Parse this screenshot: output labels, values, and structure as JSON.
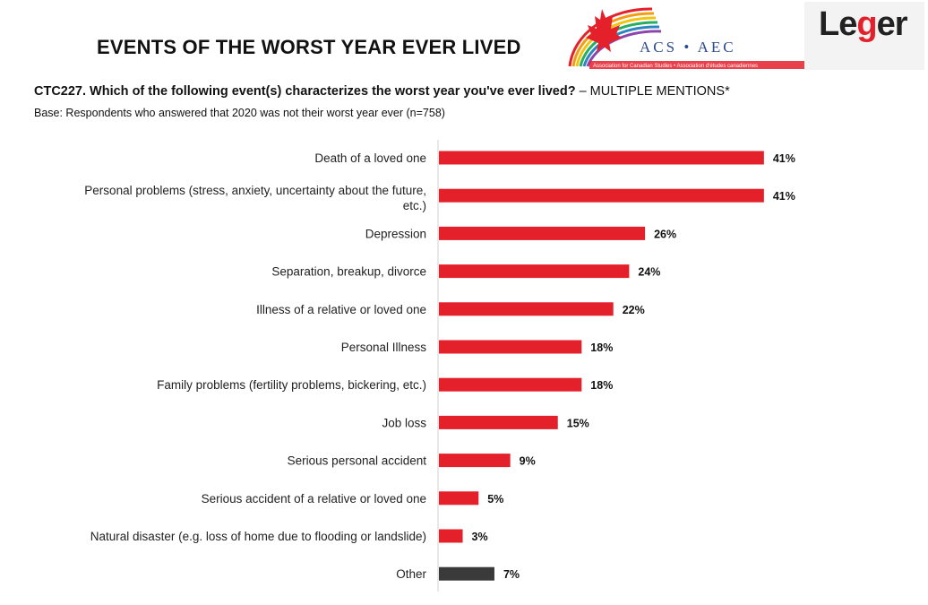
{
  "header": {
    "title": "EVENTS OF THE WORST YEAR EVER LIVED",
    "question": "CTC227. Which of the following event(s) characterizes the worst year you've ever lived?",
    "question_suffix": " – MULTIPLE MENTIONS*",
    "base": "Base: Respondents who answered that 2020 was not their worst year ever (n=758)"
  },
  "logos": {
    "acs_text": "ACS • AEC",
    "acs_subtext": "Association for Canadian Studies • Association d'études canadiennes",
    "leger_text_a": "Le",
    "leger_text_g": "g",
    "leger_text_b": "er"
  },
  "colors": {
    "bar": "#e4202b",
    "bar_other": "#3a3a3a",
    "axis": "#d0d0d0"
  },
  "chart_data": {
    "type": "bar",
    "orientation": "horizontal",
    "categories": [
      [
        "Death of a loved one"
      ],
      [
        "Personal problems (stress, anxiety, uncertainty about the future,",
        "etc.)"
      ],
      [
        "Depression"
      ],
      [
        "Separation, breakup, divorce"
      ],
      [
        "Illness of a relative or loved one"
      ],
      [
        "Personal Illness"
      ],
      [
        "Family problems (fertility problems, bickering, etc.)"
      ],
      [
        "Job loss"
      ],
      [
        "Serious personal accident"
      ],
      [
        "Serious accident of a relative or loved one"
      ],
      [
        "Natural disaster (e.g. loss of home due to flooding or landslide)"
      ],
      [
        "Other"
      ]
    ],
    "values": [
      41,
      41,
      26,
      24,
      22,
      18,
      18,
      15,
      9,
      5,
      3,
      7
    ],
    "value_labels": [
      "41%",
      "41%",
      "26%",
      "24%",
      "22%",
      "18%",
      "18%",
      "15%",
      "9%",
      "5%",
      "3%",
      "7%"
    ],
    "highlight_dark": [
      11
    ],
    "unit": "%"
  }
}
